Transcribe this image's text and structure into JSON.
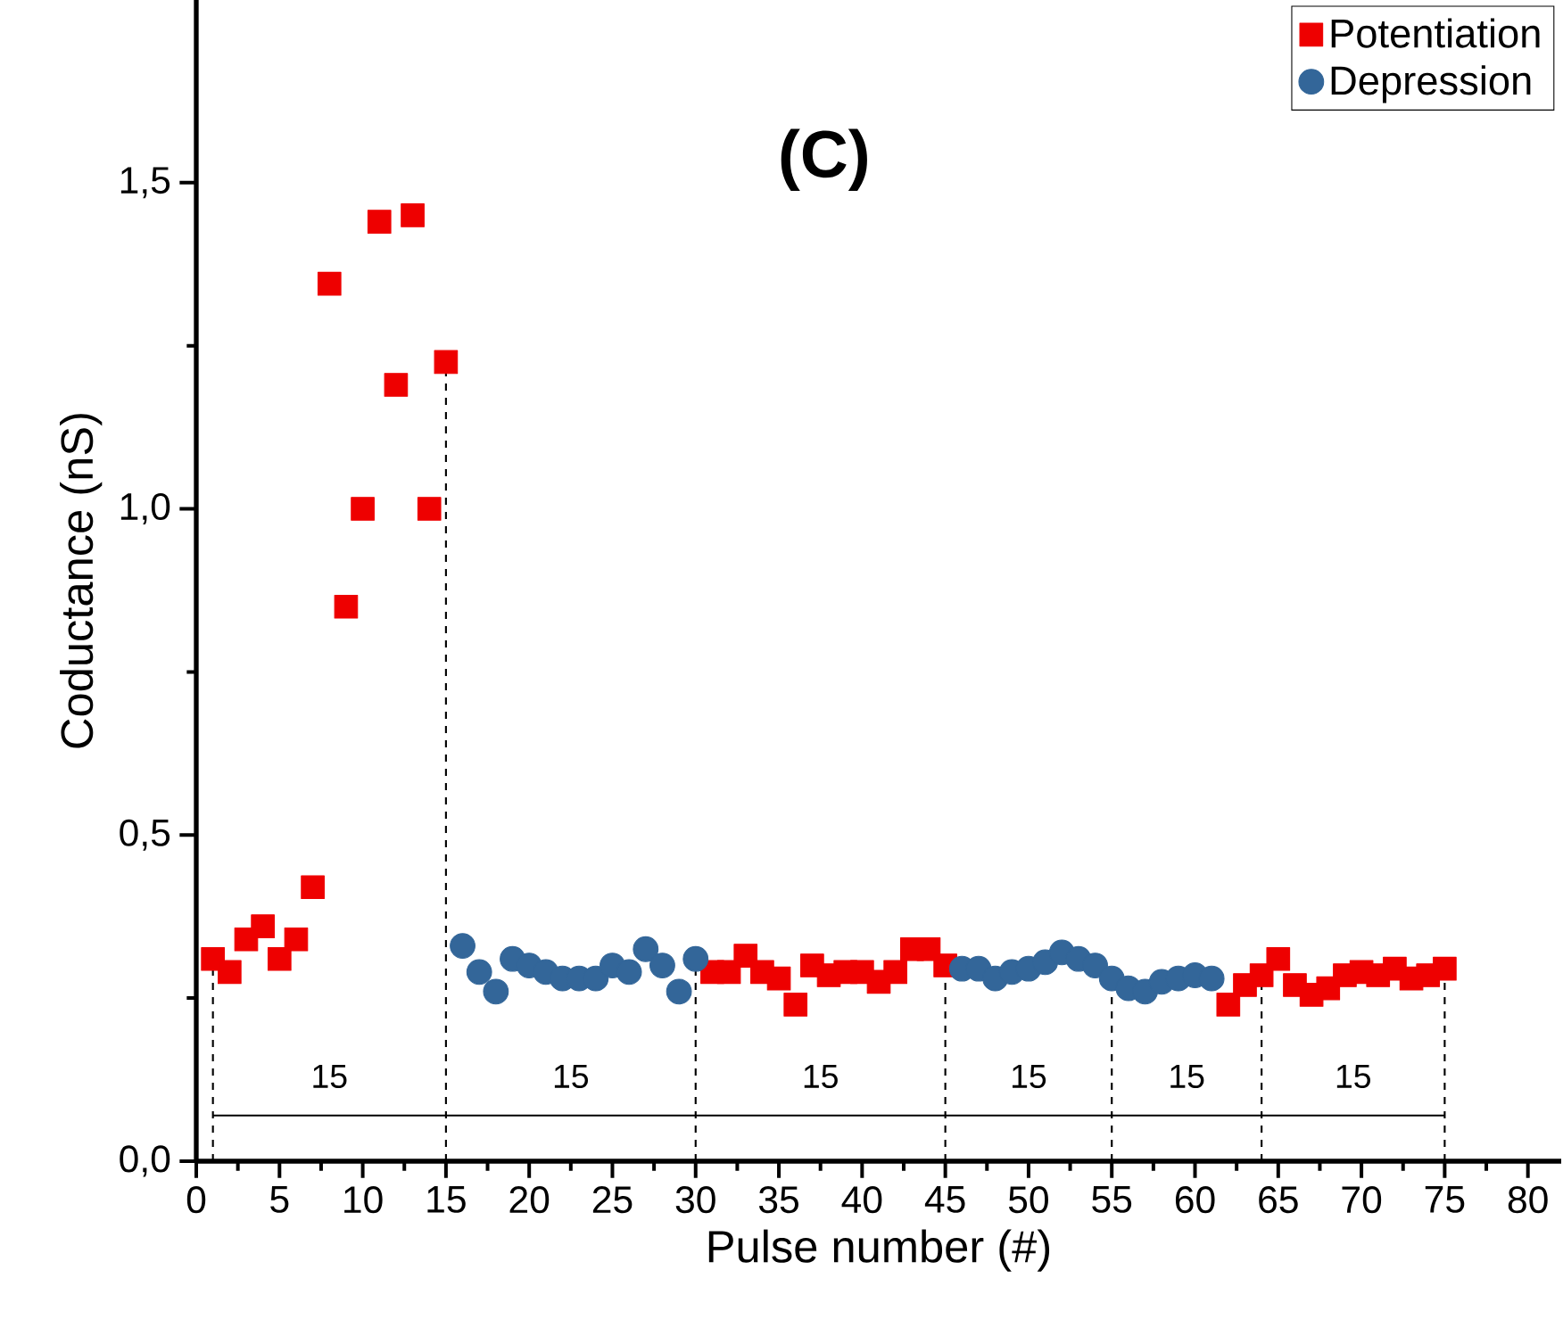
{
  "chart_data": {
    "type": "scatter",
    "title": "(C)",
    "xlabel": "Pulse number (#)",
    "ylabel": "Coductance (nS)",
    "xlim": [
      0,
      82
    ],
    "ylim": [
      0,
      1.78
    ],
    "xticks": [
      0,
      5,
      10,
      15,
      20,
      25,
      30,
      35,
      40,
      45,
      50,
      55,
      60,
      65,
      70,
      75,
      80
    ],
    "yticks": [
      {
        "value": 0,
        "label": "0,0"
      },
      {
        "value": 0.5,
        "label": "0,5"
      },
      {
        "value": 1.0,
        "label": "1,0"
      },
      {
        "value": 1.5,
        "label": "1,5"
      }
    ],
    "legend": "top right",
    "grid": false,
    "series": [
      {
        "name": "Potentiation",
        "color": "#ee0000",
        "marker": "square",
        "x": [
          1,
          2,
          3,
          4,
          5,
          6,
          7,
          8,
          9,
          10,
          11,
          12,
          13,
          14,
          15,
          31,
          32,
          33,
          34,
          35,
          36,
          37,
          38,
          39,
          40,
          41,
          42,
          43,
          44,
          45,
          62,
          63,
          64,
          65,
          66,
          67,
          68,
          69,
          70,
          71,
          72,
          73,
          74,
          75
        ],
        "values": [
          0.31,
          0.29,
          0.34,
          0.36,
          0.31,
          0.34,
          0.42,
          1.345,
          0.85,
          1.0,
          1.44,
          1.19,
          1.45,
          1.0,
          1.225,
          0.29,
          0.29,
          0.315,
          0.29,
          0.28,
          0.24,
          0.3,
          0.285,
          0.29,
          0.29,
          0.275,
          0.29,
          0.325,
          0.325,
          0.3,
          0.24,
          0.27,
          0.285,
          0.31,
          0.27,
          0.255,
          0.265,
          0.285,
          0.29,
          0.285,
          0.295,
          0.28,
          0.285,
          0.295
        ]
      },
      {
        "name": "Depression",
        "color": "#336699",
        "marker": "circle",
        "x": [
          16,
          17,
          18,
          19,
          20,
          21,
          22,
          23,
          24,
          25,
          26,
          27,
          28,
          29,
          30,
          46,
          47,
          48,
          49,
          50,
          51,
          52,
          53,
          54,
          55,
          56,
          57,
          58,
          59,
          60,
          61
        ],
        "values": [
          0.33,
          0.29,
          0.26,
          0.31,
          0.3,
          0.29,
          0.28,
          0.28,
          0.28,
          0.3,
          0.29,
          0.325,
          0.3,
          0.26,
          0.31,
          0.295,
          0.295,
          0.28,
          0.29,
          0.295,
          0.305,
          0.32,
          0.31,
          0.3,
          0.28,
          0.265,
          0.26,
          0.275,
          0.28,
          0.285,
          0.28
        ]
      },
      {
        "type": "line",
        "color": "#000000",
        "marker": "none",
        "x": [
          1,
          75
        ],
        "values": [
          0.07,
          0.07
        ]
      }
    ],
    "ref_lines": [
      {
        "axis": "x",
        "value": 1,
        "line_style": "dashed",
        "color": "#000000"
      },
      {
        "axis": "x",
        "value": 15,
        "line_style": "dashed",
        "color": "#000000"
      },
      {
        "axis": "x",
        "value": 30,
        "line_style": "dashed",
        "color": "#000000"
      },
      {
        "axis": "x",
        "value": 45,
        "line_style": "dashed",
        "color": "#000000"
      },
      {
        "axis": "x",
        "value": 55,
        "line_style": "dashed",
        "color": "#000000"
      },
      {
        "axis": "x",
        "value": 64,
        "line_style": "dashed",
        "color": "#000000"
      },
      {
        "axis": "x",
        "value": 75,
        "line_style": "dashed",
        "color": "#000000"
      }
    ],
    "annotations": [
      "15",
      "15",
      "15",
      "15",
      "15",
      "15"
    ]
  }
}
